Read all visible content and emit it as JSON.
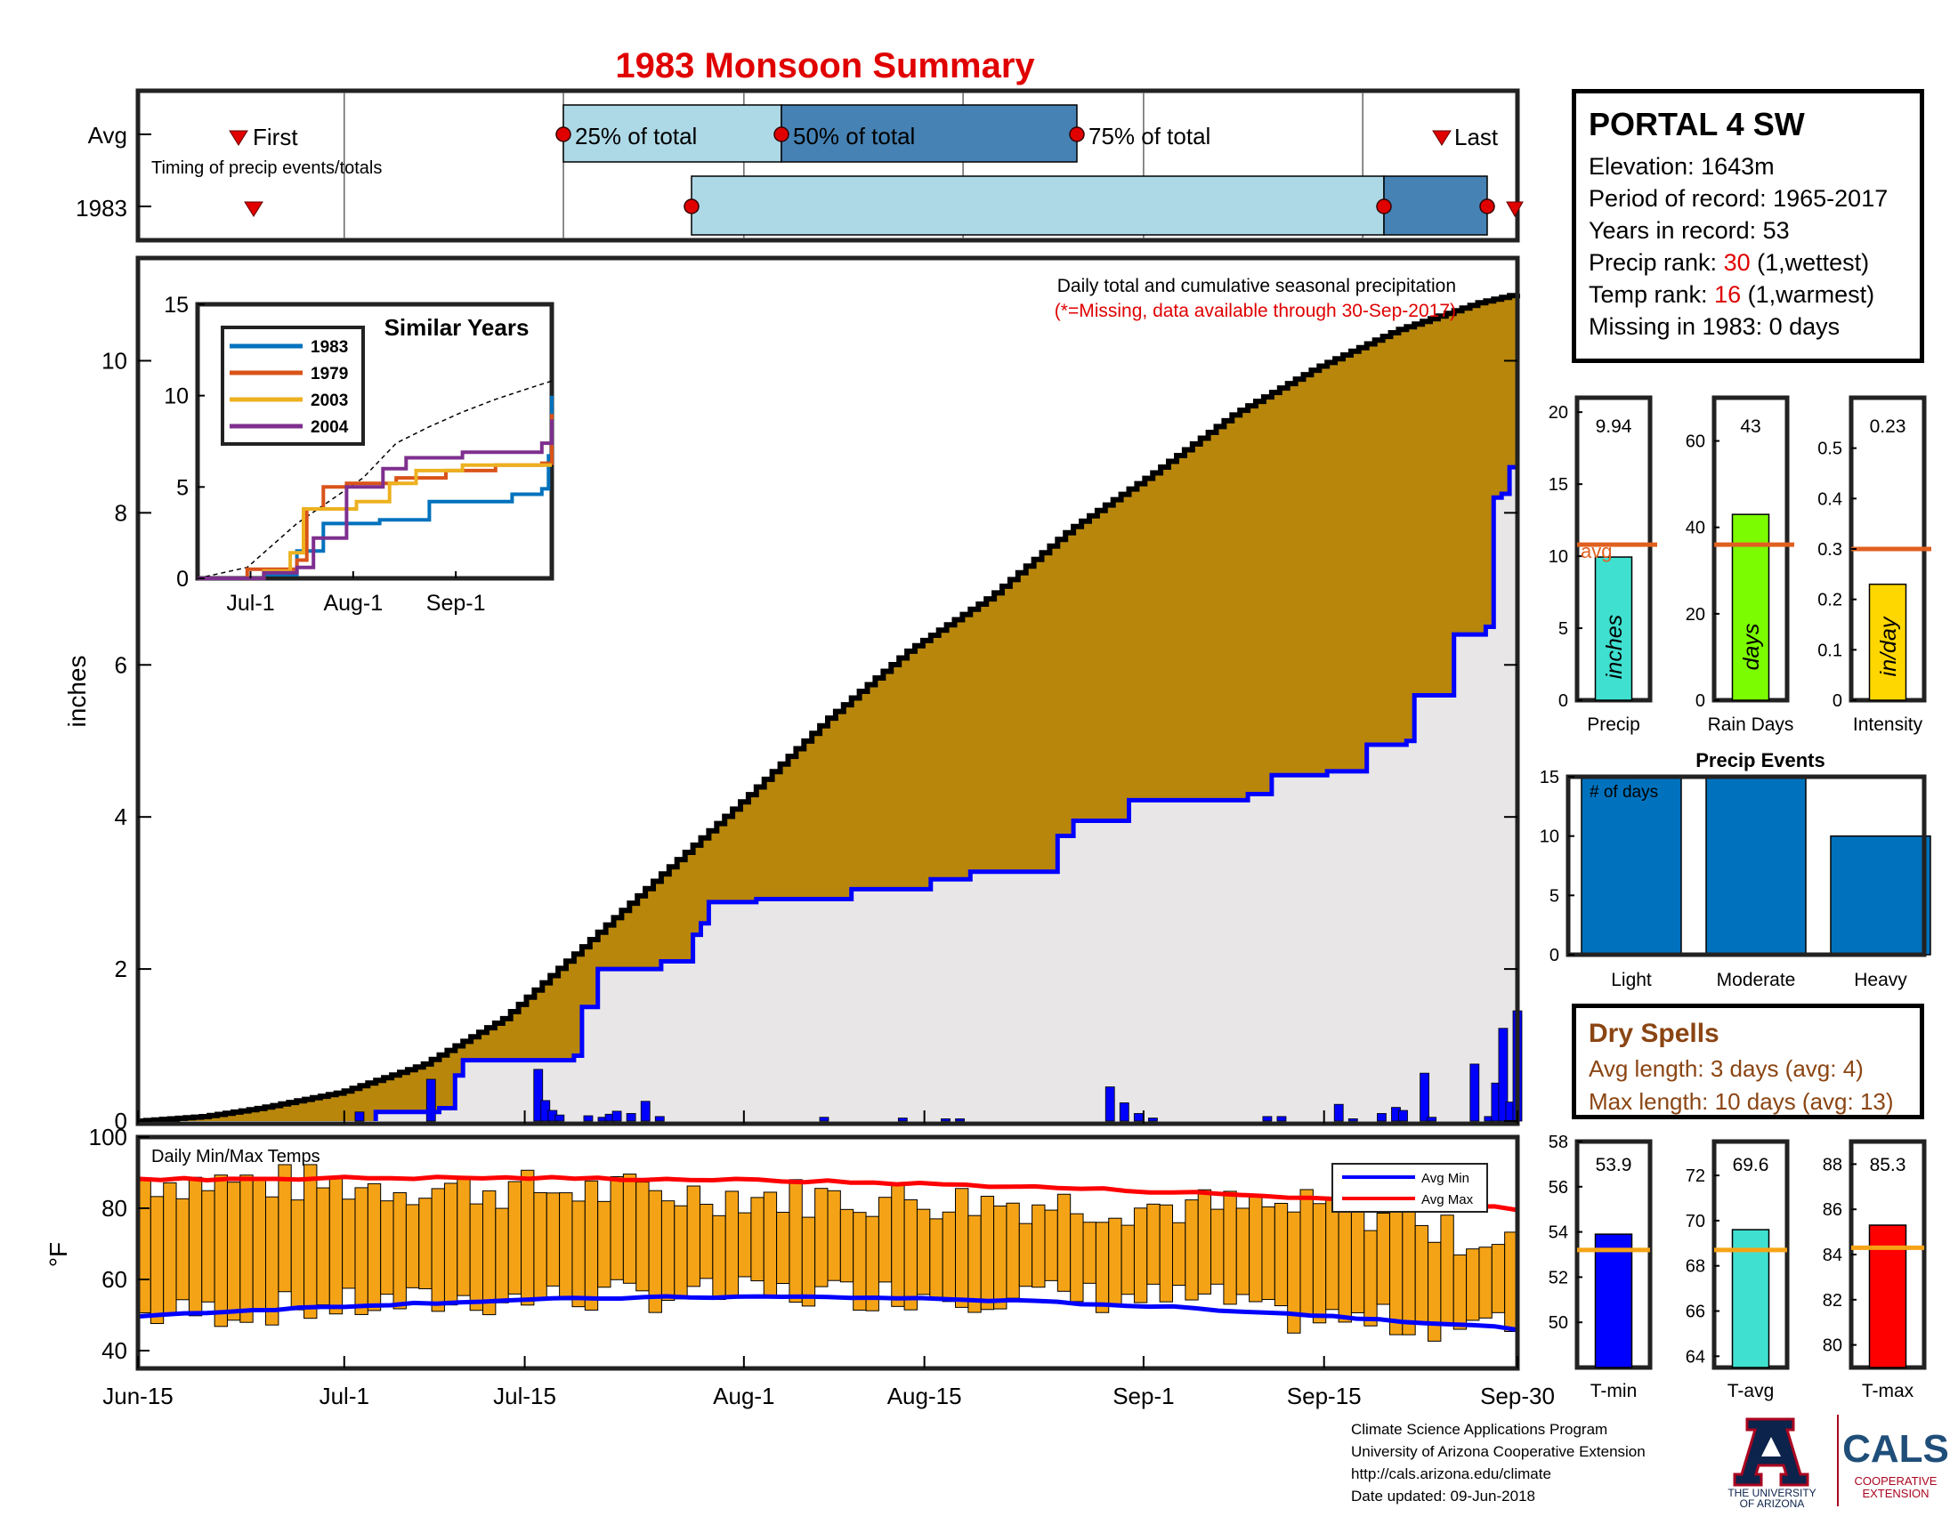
{
  "title": "1983 Monsoon Summary",
  "colors": {
    "accent_red": "#e00000",
    "cum_1983": "#0000ff",
    "cum_avg_fill": "#b8860b",
    "bar_orange": "#f5a316",
    "avg_line": "#e06020"
  },
  "timing": {
    "row_labels": [
      "Avg",
      "1983"
    ],
    "caption": "Timing of precip events/totals",
    "first_label": "First",
    "last_label": "Last",
    "q25_label": "25% of total",
    "q50_label": "50% of total",
    "q75_label": "75% of total"
  },
  "date_axis": {
    "ticks": [
      "Jun-15",
      "Jul-1",
      "Jul-15",
      "Aug-1",
      "Aug-15",
      "Sep-1",
      "Sep-15",
      "Sep-30"
    ]
  },
  "main": {
    "ylabel": "inches",
    "note_line1": "Daily total and cumulative seasonal precipitation",
    "note_line2": "(*=Missing, data available through 30-Sep-2017)",
    "yticks": [
      "0",
      "2",
      "4",
      "6",
      "8",
      "10"
    ]
  },
  "inset": {
    "title": "Similar Years",
    "legend": [
      "1983",
      "1979",
      "2003",
      "2004"
    ],
    "yticks": [
      "0",
      "5",
      "10",
      "15"
    ],
    "xticks": [
      "Jul-1",
      "Aug-1",
      "Sep-1"
    ]
  },
  "temps": {
    "title": "Daily Min/Max Temps",
    "ylabel": "°F",
    "yticks": [
      "40",
      "60",
      "80",
      "100"
    ],
    "legend_min": "Avg Min",
    "legend_max": "Avg Max"
  },
  "station": {
    "name": "PORTAL 4 SW",
    "elevation": "Elevation: 1643m",
    "period": "Period of record: 1965-2017",
    "years": "Years in record: 53",
    "precip_rank_pre": "Precip rank: ",
    "precip_rank_val": "30",
    "precip_rank_post": " (1,wettest)",
    "temp_rank_pre": "Temp rank: ",
    "temp_rank_val": "16",
    "temp_rank_post": " (1,warmest)",
    "missing": "Missing in 1983: 0 days"
  },
  "summary_bars": {
    "avg_label": "avg",
    "precip": {
      "value_label": "9.94",
      "unit": "inches",
      "xlabel": "Precip",
      "yticks": [
        "0",
        "5",
        "10",
        "15",
        "20"
      ]
    },
    "raindays": {
      "value_label": "43",
      "unit": "days",
      "xlabel": "Rain Days",
      "yticks": [
        "0",
        "20",
        "40",
        "60"
      ]
    },
    "intensity": {
      "value_label": "0.23",
      "unit": "in/day",
      "xlabel": "Intensity",
      "yticks": [
        "0",
        "0.1",
        "0.2",
        "0.3",
        "0.4",
        "0.5"
      ]
    }
  },
  "events": {
    "title": "Precip Events",
    "ylabel_inside": "# of days",
    "categories": [
      "Light",
      "Moderate",
      "Heavy"
    ],
    "yticks": [
      "0",
      "5",
      "10",
      "15"
    ]
  },
  "dry_spells": {
    "title": "Dry Spells",
    "avg_length": "Avg length: 3 days (avg: 4)",
    "max_length": "Max length: 10 days (avg: 13)"
  },
  "temp_bars": {
    "tmin": {
      "value_label": "53.9",
      "xlabel": "T-min",
      "yticks": [
        "50",
        "52",
        "54",
        "56",
        "58"
      ]
    },
    "tavg": {
      "value_label": "69.6",
      "xlabel": "T-avg",
      "yticks": [
        "64",
        "66",
        "68",
        "70",
        "72"
      ]
    },
    "tmax": {
      "value_label": "85.3",
      "xlabel": "T-max",
      "yticks": [
        "80",
        "82",
        "84",
        "86",
        "88"
      ]
    }
  },
  "footer": {
    "line1": "Climate Science Applications Program",
    "line2": "University of Arizona Cooperative Extension",
    "line3": "http://cals.arizona.edu/climate",
    "line4": " Date updated: 09-Jun-2018"
  },
  "logo": {
    "ua_line1": "THE UNIVERSITY",
    "ua_line2": "OF ARIZONA",
    "cals": "CALS",
    "coop1": "COOPERATIVE",
    "coop2": "EXTENSION"
  },
  "chart_data": [
    {
      "type": "line",
      "title": "1983 Monsoon Summary",
      "ylabel": "inches",
      "x_start": "Jun-15",
      "x_end": "Sep-30",
      "ylim": [
        0,
        11
      ],
      "series": [],
      "cum_avg_points": [
        [
          0,
          0
        ],
        [
          8,
          0.06
        ],
        [
          15,
          0.17
        ],
        [
          25,
          0.38
        ],
        [
          35,
          0.74
        ],
        [
          45,
          1.35
        ],
        [
          55,
          2.32
        ],
        [
          65,
          3.3
        ],
        [
          75,
          4.27
        ],
        [
          85,
          5.3
        ],
        [
          95,
          6.2
        ],
        [
          105,
          6.9
        ],
        [
          115,
          7.8
        ],
        [
          125,
          8.52
        ],
        [
          135,
          9.3
        ],
        [
          145,
          9.9
        ],
        [
          155,
          10.4
        ],
        [
          165,
          10.76
        ],
        [
          170,
          10.88
        ]
      ],
      "cum_1983_points": [
        [
          30,
          0.12
        ],
        [
          38,
          0.17
        ],
        [
          40,
          0.6
        ],
        [
          41,
          0.8
        ],
        [
          55,
          0.86
        ],
        [
          56,
          1.5
        ],
        [
          58,
          2.0
        ],
        [
          62,
          2.0
        ],
        [
          66,
          2.1
        ],
        [
          70,
          2.45
        ],
        [
          71,
          2.6
        ],
        [
          72,
          2.88
        ],
        [
          78,
          2.92
        ],
        [
          90,
          3.05
        ],
        [
          100,
          3.18
        ],
        [
          105,
          3.28
        ],
        [
          115,
          3.28
        ],
        [
          116,
          3.75
        ],
        [
          118,
          3.95
        ],
        [
          125,
          4.22
        ],
        [
          140,
          4.3
        ],
        [
          143,
          4.55
        ],
        [
          150,
          4.6
        ],
        [
          155,
          4.95
        ],
        [
          160,
          5.0
        ],
        [
          161,
          5.6
        ],
        [
          165,
          5.6
        ],
        [
          166,
          6.4
        ],
        [
          170,
          6.5
        ],
        [
          171,
          8.2
        ],
        [
          172,
          8.25
        ],
        [
          173,
          8.6
        ],
        [
          174,
          9.94
        ]
      ],
      "daily_bars": [
        [
          31,
          0.12
        ],
        [
          41,
          0.55
        ],
        [
          56,
          0.68
        ],
        [
          57,
          0.27
        ],
        [
          58,
          0.14
        ],
        [
          59,
          0.08
        ],
        [
          63,
          0.07
        ],
        [
          65,
          0.05
        ],
        [
          66,
          0.09
        ],
        [
          67,
          0.13
        ],
        [
          69,
          0.1
        ],
        [
          71,
          0.26
        ],
        [
          73,
          0.06
        ],
        [
          96,
          0.05
        ],
        [
          107,
          0.04
        ],
        [
          113,
          0.03
        ],
        [
          115,
          0.03
        ],
        [
          136,
          0.45
        ],
        [
          138,
          0.24
        ],
        [
          140,
          0.1
        ],
        [
          142,
          0.04
        ],
        [
          158,
          0.06
        ],
        [
          160,
          0.06
        ],
        [
          168,
          0.22
        ],
        [
          170,
          0.03
        ],
        [
          174,
          0.1
        ],
        [
          176,
          0.18
        ],
        [
          177,
          0.14
        ],
        [
          180,
          0.63
        ],
        [
          181,
          0.05
        ],
        [
          187,
          0.75
        ],
        [
          189,
          0.06
        ],
        [
          190,
          0.5
        ],
        [
          191,
          1.22
        ],
        [
          192,
          0.25
        ],
        [
          193,
          1.45
        ]
      ]
    },
    {
      "type": "line",
      "title": "Similar Years",
      "xlim": [
        "Jun-15",
        "Sep-30"
      ],
      "ylim": [
        0,
        15
      ],
      "series": [
        {
          "name": "1983",
          "values": [
            [
              0,
              0
            ],
            [
              20,
              0.2
            ],
            [
              30,
              1.5
            ],
            [
              38,
              3.0
            ],
            [
              55,
              3.2
            ],
            [
              70,
              4.2
            ],
            [
              95,
              4.6
            ],
            [
              104,
              4.9
            ],
            [
              106,
              6.7
            ],
            [
              107,
              10.0
            ]
          ]
        },
        {
          "name": "1979",
          "values": [
            [
              0,
              0
            ],
            [
              15,
              0.5
            ],
            [
              30,
              1.0
            ],
            [
              33,
              3.8
            ],
            [
              38,
              5.0
            ],
            [
              45,
              5.2
            ],
            [
              60,
              5.5
            ],
            [
              75,
              5.9
            ],
            [
              90,
              6.2
            ],
            [
              104,
              6.3
            ],
            [
              107,
              9.0
            ]
          ]
        },
        {
          "name": "2003",
          "values": [
            [
              0,
              0
            ],
            [
              20,
              0.4
            ],
            [
              28,
              1.4
            ],
            [
              32,
              3.8
            ],
            [
              48,
              4.2
            ],
            [
              58,
              5.2
            ],
            [
              66,
              5.9
            ],
            [
              80,
              6.2
            ],
            [
              107,
              6.2
            ]
          ]
        },
        {
          "name": "2004",
          "values": [
            [
              0,
              0
            ],
            [
              20,
              0.3
            ],
            [
              30,
              0.6
            ],
            [
              35,
              2.2
            ],
            [
              45,
              5.0
            ],
            [
              56,
              6.0
            ],
            [
              63,
              6.6
            ],
            [
              80,
              6.9
            ],
            [
              104,
              7.4
            ],
            [
              107,
              8.7
            ]
          ]
        }
      ],
      "avg_cum_dashed": [
        [
          0,
          0
        ],
        [
          15,
          0.6
        ],
        [
          30,
          3.0
        ],
        [
          50,
          5.5
        ],
        [
          60,
          7.4
        ],
        [
          70,
          8.3
        ],
        [
          80,
          9.1
        ],
        [
          90,
          9.8
        ],
        [
          100,
          10.4
        ],
        [
          107,
          10.8
        ]
      ]
    },
    {
      "type": "bar",
      "title": "Daily Min/Max Temps",
      "ylabel": "°F",
      "ylim": [
        35,
        100
      ],
      "avg_max_start": 88,
      "avg_max_end": 78,
      "avg_min_start": 48,
      "avg_min_end": 44
    },
    {
      "type": "bar",
      "categories": [
        "Precip",
        "Rain Days",
        "Intensity"
      ],
      "series": [
        {
          "name": "1983",
          "values": [
            9.94,
            43,
            0.23
          ]
        },
        {
          "name": "avg",
          "values": [
            10.8,
            36,
            0.3
          ]
        }
      ],
      "ylims": [
        [
          0,
          21
        ],
        [
          0,
          70
        ],
        [
          0,
          0.6
        ]
      ]
    },
    {
      "type": "bar",
      "title": "Precip Events",
      "categories": [
        "Light",
        "Moderate",
        "Heavy"
      ],
      "values": [
        15,
        15,
        10
      ],
      "ylim": [
        0,
        15
      ]
    },
    {
      "type": "bar",
      "categories": [
        "T-min",
        "T-avg",
        "T-max"
      ],
      "series": [
        {
          "name": "1983",
          "values": [
            53.9,
            69.6,
            85.3
          ]
        },
        {
          "name": "avg",
          "values": [
            53.2,
            68.7,
            84.3
          ]
        }
      ],
      "ylims": [
        [
          48,
          58
        ],
        [
          63.5,
          73.5
        ],
        [
          79,
          89
        ]
      ]
    }
  ]
}
